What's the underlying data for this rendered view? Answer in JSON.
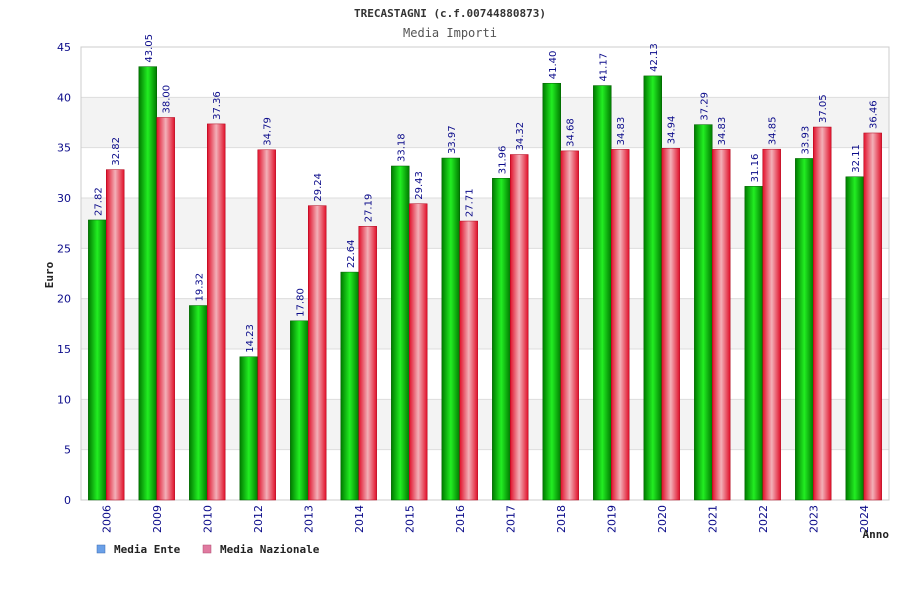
{
  "chart_data": {
    "type": "bar",
    "title": "TRECASTAGNI (c.f.00744880873)",
    "subtitle": "Media Importi",
    "xlabel": "Anno",
    "ylabel": "Euro",
    "ylim": [
      0,
      45
    ],
    "yticks": [
      "0",
      "5",
      "10",
      "15",
      "20",
      "25",
      "30",
      "35",
      "40",
      "45"
    ],
    "grid": "horizontal, alternating bands",
    "legend_position": "bottom-left",
    "categories": [
      "2006",
      "2009",
      "2010",
      "2012",
      "2013",
      "2014",
      "2015",
      "2016",
      "2017",
      "2018",
      "2019",
      "2020",
      "2021",
      "2022",
      "2023",
      "2024"
    ],
    "series": [
      {
        "name": "Media Ente",
        "color": "#00cc00",
        "legend_color": "#6aa0e8",
        "values": [
          27.82,
          43.05,
          19.32,
          14.23,
          17.8,
          22.64,
          33.18,
          33.97,
          31.96,
          41.4,
          41.17,
          42.13,
          37.29,
          31.16,
          33.93,
          32.11
        ],
        "labels": [
          "27.82",
          "43.05",
          "19.32",
          "14.23",
          "17.80",
          "22.64",
          "33.18",
          "33.97",
          "31.96",
          "41.40",
          "41.17",
          "42.13",
          "37.29",
          "31.16",
          "33.93",
          "32.11"
        ]
      },
      {
        "name": "Media Nazionale",
        "color": "#ee3344",
        "legend_color": "#e07aa0",
        "values": [
          32.82,
          38.0,
          37.36,
          34.79,
          29.24,
          27.19,
          29.43,
          27.71,
          34.32,
          34.68,
          34.83,
          34.94,
          34.83,
          34.85,
          37.05,
          36.46
        ],
        "labels": [
          "32.82",
          "38.00",
          "37.36",
          "34.79",
          "29.24",
          "27.19",
          "29.43",
          "27.71",
          "34.32",
          "34.68",
          "34.83",
          "34.94",
          "34.83",
          "34.85",
          "37.05",
          "36.46"
        ]
      }
    ]
  }
}
